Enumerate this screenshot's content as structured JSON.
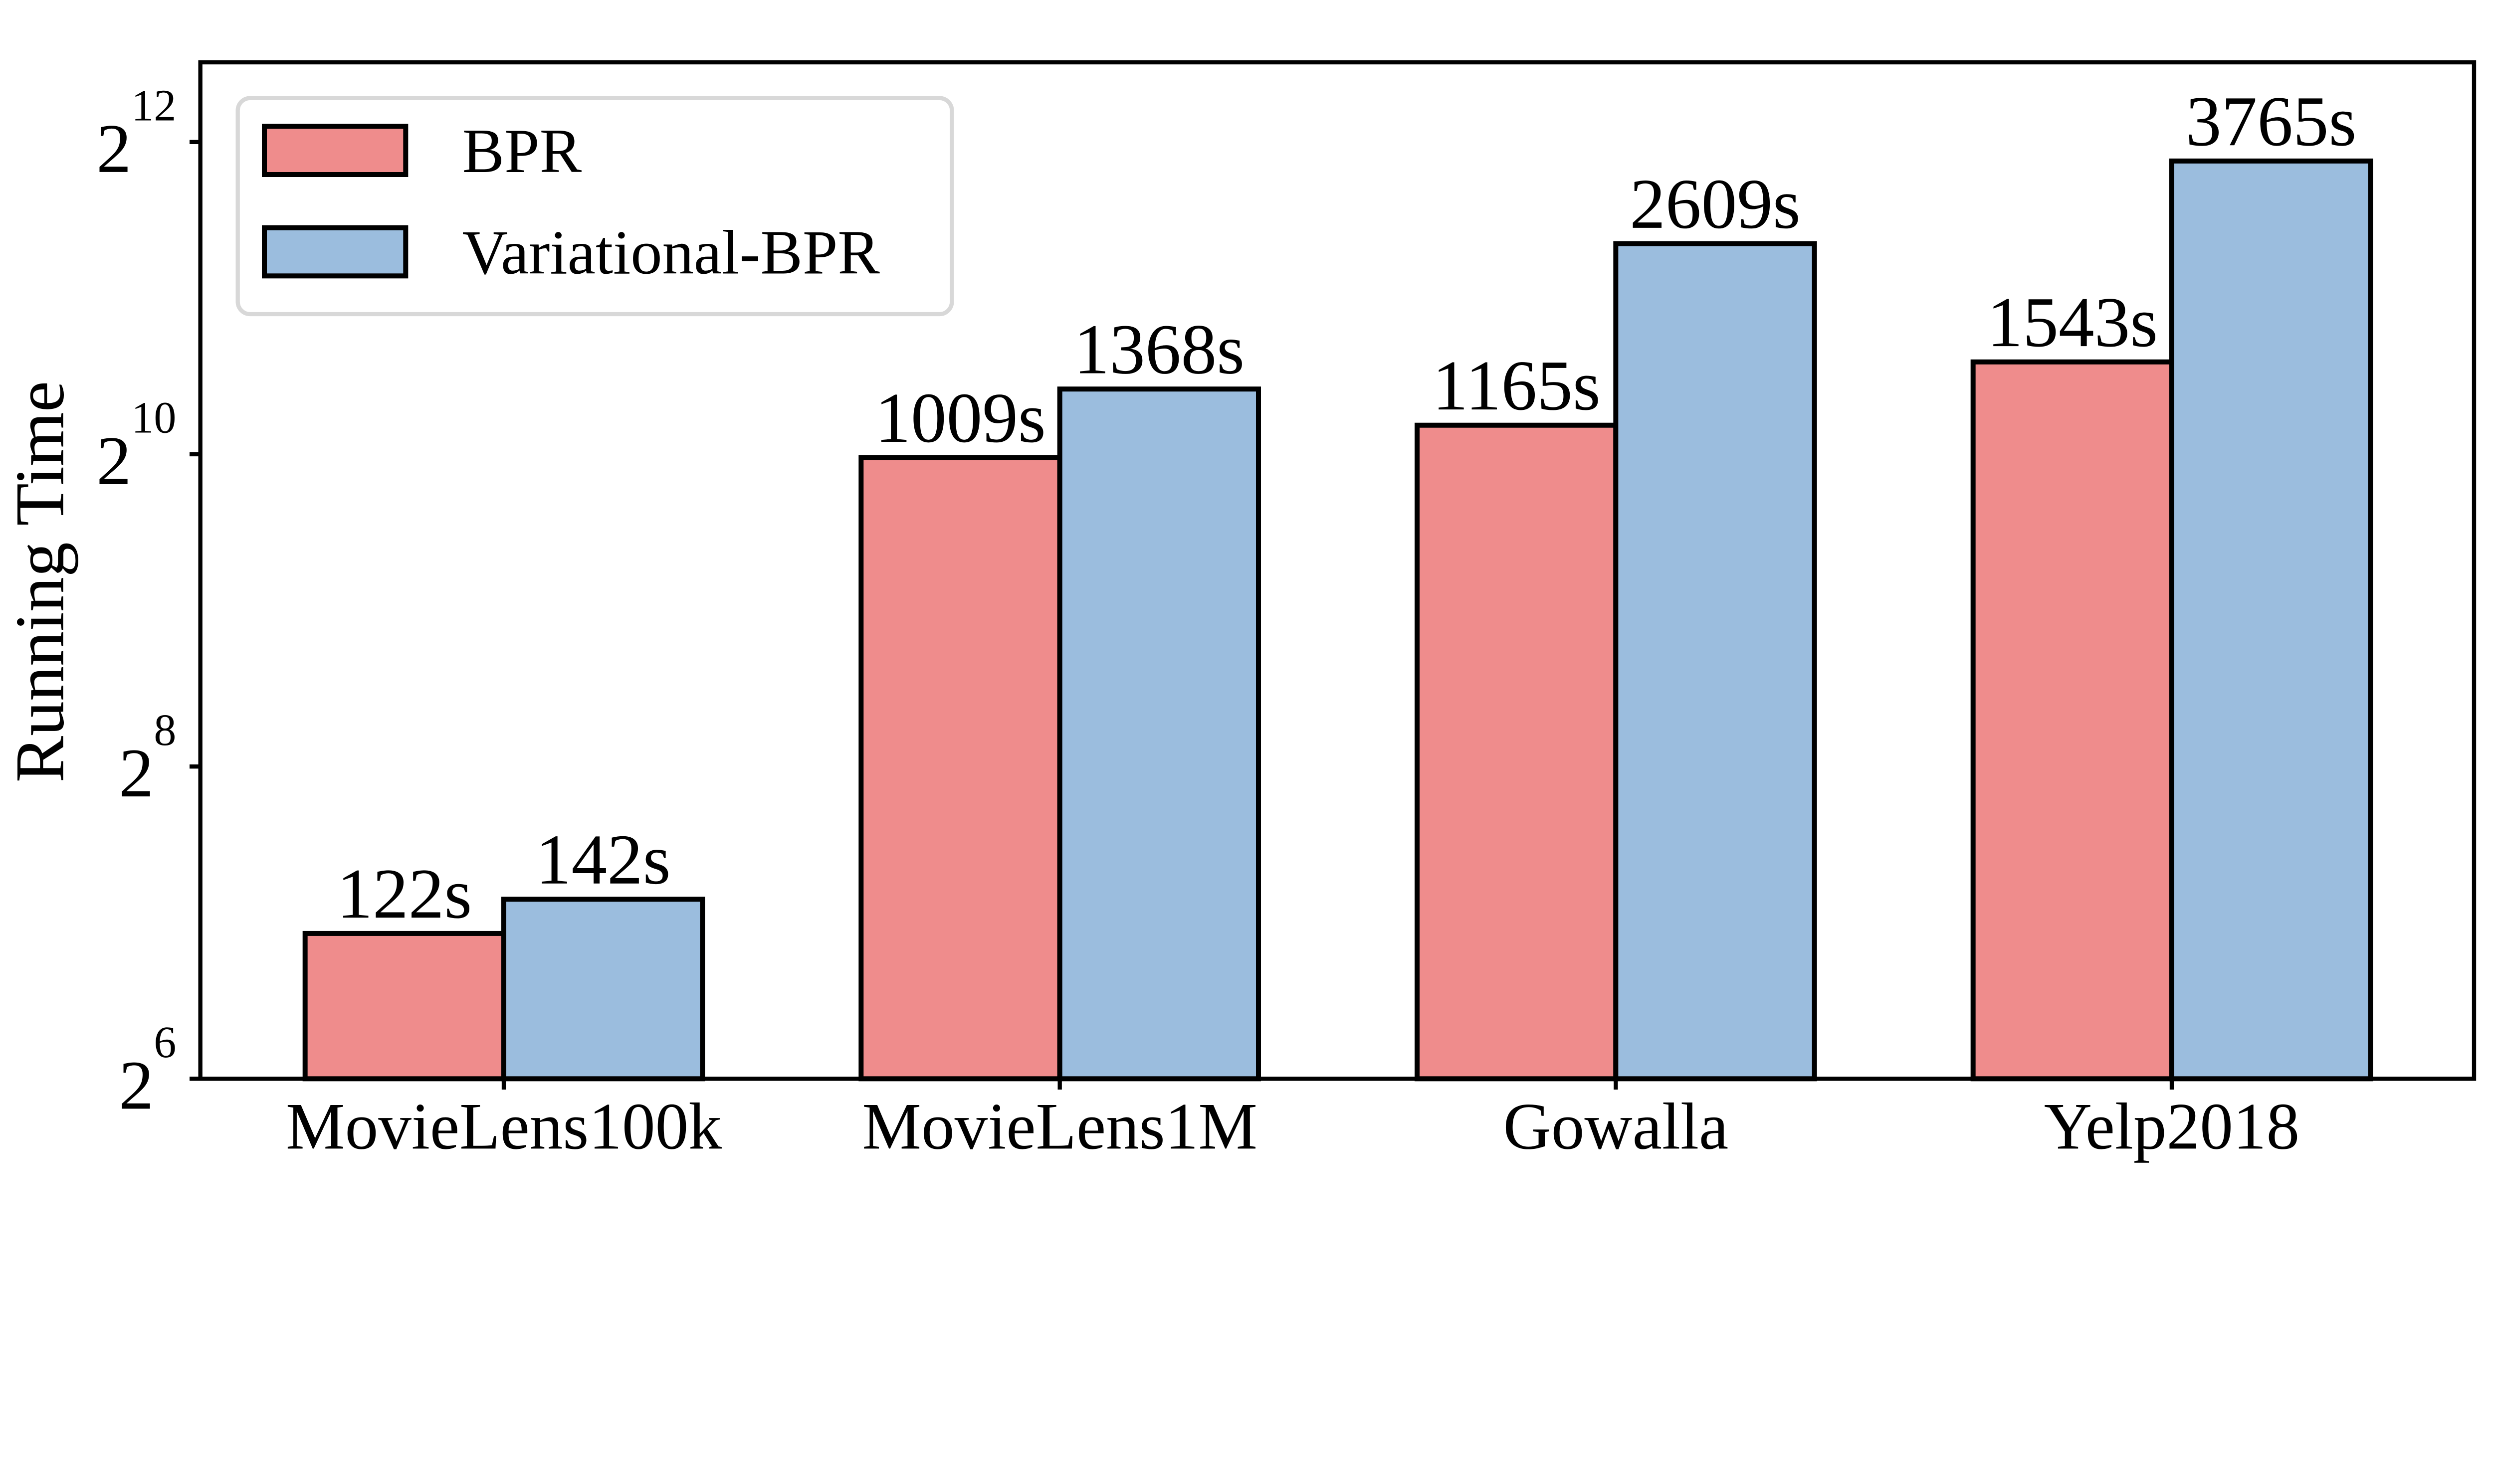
{
  "chart_data": {
    "type": "bar",
    "title": "",
    "ylabel": "Running Time",
    "xlabel": "",
    "categories": [
      "MovieLens100k",
      "MovieLens1M",
      "Gowalla",
      "Yelp2018"
    ],
    "series": [
      {
        "name": "BPR",
        "color": "#ef8c8c",
        "edge_color": "#000000",
        "values": [
          122,
          1009,
          1165,
          1543
        ],
        "value_labels": [
          "122s",
          "1009s",
          "1165s",
          "1543s"
        ]
      },
      {
        "name": "Variational-BPR",
        "color": "#9bbdde",
        "edge_color": "#000000",
        "values": [
          142,
          1368,
          2609,
          3765
        ],
        "value_labels": [
          "142s",
          "1368s",
          "2609s",
          "3765s"
        ]
      }
    ],
    "y_axis": {
      "scale": "log2",
      "range": [
        64,
        5835
      ],
      "ticks": [
        {
          "base": "2",
          "exp": "6",
          "value": 64
        },
        {
          "base": "2",
          "exp": "8",
          "value": 256
        },
        {
          "base": "2",
          "exp": "10",
          "value": 1024
        },
        {
          "base": "2",
          "exp": "12",
          "value": 4096
        }
      ]
    },
    "legend": {
      "position": "upper-left",
      "border_color": "#d8d8d8",
      "background": "#ffffff"
    },
    "grid": false,
    "axis_color": "#000000",
    "background": "#ffffff"
  }
}
